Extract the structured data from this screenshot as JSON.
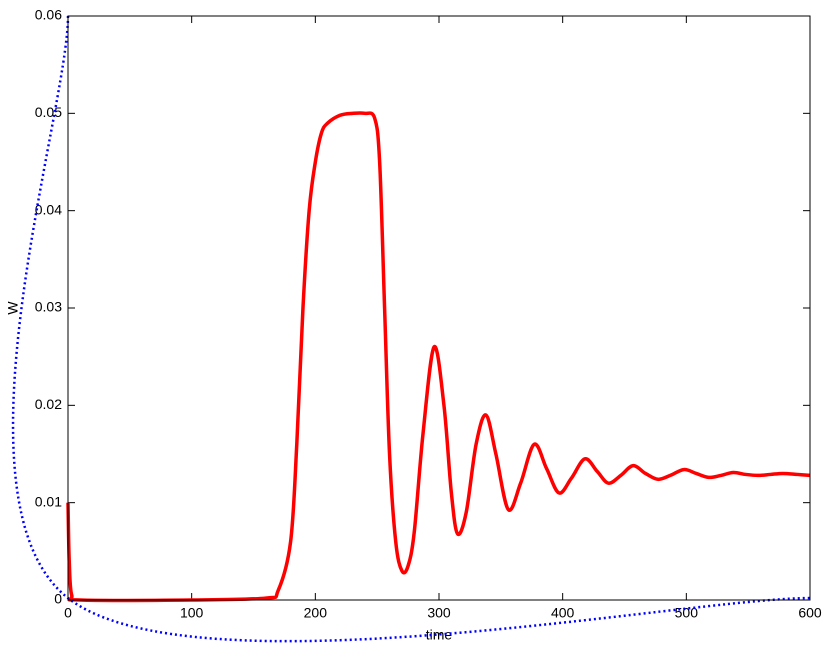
{
  "chart_data": {
    "type": "line",
    "xlabel": "time",
    "ylabel": "W",
    "xlim": [
      0,
      600
    ],
    "ylim": [
      0,
      0.06
    ],
    "xticks": [
      0,
      100,
      200,
      300,
      400,
      500,
      600
    ],
    "yticks": [
      0,
      0.01,
      0.02,
      0.03,
      0.04,
      0.05,
      0.06
    ],
    "series": [
      {
        "color": "#ff0000",
        "style": "solid",
        "x": [
          0,
          1,
          3,
          10,
          100,
          160,
          170,
          180,
          185,
          190,
          195,
          200,
          205,
          210,
          220,
          230,
          240,
          248,
          252,
          256,
          260,
          265,
          270,
          275,
          280,
          287,
          296,
          304,
          310,
          315,
          322,
          330,
          338,
          346,
          356,
          366,
          377,
          387,
          397,
          407,
          418,
          428,
          437,
          447,
          457,
          467,
          477,
          487,
          498,
          508,
          518,
          528,
          538,
          548,
          558,
          568,
          578,
          590,
          600
        ],
        "values": [
          0.01,
          0.004,
          0.0005,
          0,
          0,
          0.0002,
          0.001,
          0.006,
          0.016,
          0.03,
          0.04,
          0.045,
          0.048,
          0.049,
          0.0498,
          0.05,
          0.05,
          0.0495,
          0.045,
          0.03,
          0.015,
          0.006,
          0.003,
          0.0035,
          0.007,
          0.017,
          0.026,
          0.02,
          0.011,
          0.0068,
          0.009,
          0.016,
          0.019,
          0.015,
          0.0093,
          0.012,
          0.016,
          0.0135,
          0.011,
          0.0125,
          0.0145,
          0.0132,
          0.012,
          0.0128,
          0.0138,
          0.013,
          0.0124,
          0.0128,
          0.0134,
          0.013,
          0.0126,
          0.0128,
          0.0131,
          0.0129,
          0.0128,
          0.0129,
          0.013,
          0.0129,
          0.0128
        ]
      },
      {
        "color": "#0000ff",
        "style": "dotted",
        "x": [
          0,
          0,
          600
        ],
        "values": [
          0.06,
          0.0002,
          0.0002
        ]
      }
    ]
  }
}
